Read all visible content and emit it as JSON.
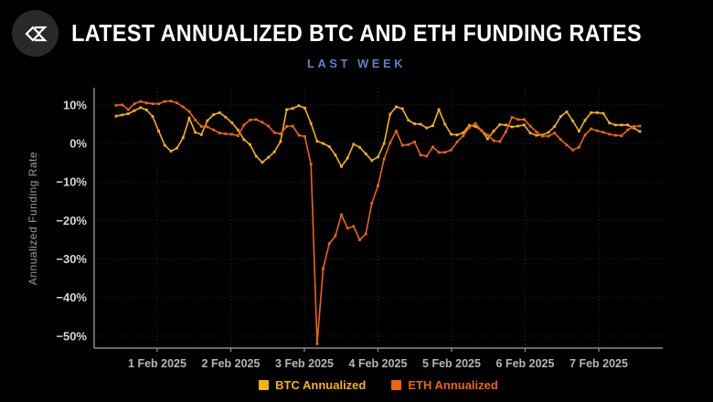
{
  "header": {
    "title": "LATEST ANNUALIZED BTC AND ETH FUNDING RATES",
    "subtitle": "LAST WEEK",
    "logo_icon": "sigma-diamond-logo-icon"
  },
  "colors": {
    "background": "#000000",
    "title_text": "#ffffff",
    "subtitle_text": "#5d81c4",
    "btc": "#f5b40d",
    "eth": "#ed650c",
    "axis_line": "#8a8a8a",
    "gridline": "#262626",
    "y_tick_label": "#d6d6d6",
    "x_tick_label": "#b5b5b5",
    "axis_title": "#9b9b9b",
    "logo_circle": "#292929",
    "logo_glyph": "#ffffff"
  },
  "chart_data": {
    "type": "line",
    "title": "LATEST ANNUALIZED BTC AND ETH FUNDING RATES",
    "subtitle": "LAST WEEK",
    "xlabel": "",
    "ylabel": "Annualized Funding Rate",
    "ylim": [
      -53,
      13.5
    ],
    "grid": "dotted horizontal lines each 10% and vertical lines at each day tick",
    "legend_position": "bottom-center",
    "marker": "square",
    "x_tick_labels": [
      "1 Feb 2025",
      "2 Feb 2025",
      "3 Feb 2025",
      "4 Feb 2025",
      "5 Feb 2025",
      "6 Feb 2025",
      "7 Feb 2025"
    ],
    "y_tick_labels": [
      "10%",
      "0%",
      "−10%",
      "−20%",
      "−30%",
      "−40%",
      "−50%"
    ],
    "y_tick_values": [
      10,
      0,
      -10,
      -20,
      -30,
      -40,
      -50
    ],
    "x_note": "values estimated at ~2-hour spacing, spanning from just before 1 Feb 2025 to midday 7 Feb 2025",
    "series": [
      {
        "name": "BTC Annualized",
        "color": "#f5b40d",
        "values": [
          7.1,
          7.4,
          7.7,
          8.5,
          9.3,
          8.7,
          7.0,
          3.2,
          -0.5,
          -2.0,
          -1.2,
          1.5,
          6.6,
          2.9,
          2.3,
          5.9,
          7.5,
          8.0,
          6.8,
          5.4,
          3.5,
          1.0,
          -0.3,
          -3.3,
          -4.9,
          -3.6,
          -2.2,
          0.5,
          8.8,
          9.1,
          9.8,
          9.2,
          5.2,
          0.6,
          0.0,
          -0.8,
          -3.0,
          -6.0,
          -3.8,
          -0.2,
          -1.0,
          -2.7,
          -4.4,
          -3.5,
          0.0,
          7.6,
          9.5,
          9.0,
          6.0,
          5.1,
          5.0,
          4.0,
          4.6,
          8.8,
          5.0,
          2.4,
          2.2,
          2.8,
          4.7,
          4.4,
          3.4,
          1.2,
          3.2,
          4.9,
          4.8,
          4.3,
          4.5,
          4.8,
          2.7,
          2.1,
          2.2,
          2.9,
          4.4,
          7.0,
          8.2,
          5.8,
          3.2,
          6.0,
          8.0,
          8.0,
          7.8,
          5.3,
          4.8,
          4.8,
          4.8,
          4.0,
          3.1
        ]
      },
      {
        "name": "ETH Annualized",
        "color": "#ed650c",
        "values": [
          9.9,
          10.0,
          8.8,
          10.3,
          10.9,
          10.5,
          10.3,
          10.3,
          10.9,
          11.0,
          10.5,
          9.5,
          8.3,
          6.1,
          4.4,
          4.3,
          3.5,
          2.7,
          2.5,
          2.4,
          2.0,
          4.8,
          6.1,
          6.2,
          5.5,
          4.5,
          2.8,
          2.5,
          4.4,
          4.5,
          2.1,
          1.8,
          -5.4,
          -52.0,
          -32.5,
          -26.0,
          -24.0,
          -18.5,
          -22.0,
          -21.5,
          -25.0,
          -23.5,
          -15.5,
          -11.0,
          -4.0,
          0.2,
          3.2,
          -0.5,
          -0.3,
          0.4,
          -3.0,
          -3.3,
          -0.9,
          -2.3,
          -2.3,
          -1.7,
          0.4,
          2.0,
          4.2,
          5.2,
          3.3,
          2.2,
          0.7,
          0.5,
          3.0,
          6.8,
          6.2,
          6.2,
          4.5,
          3.0,
          1.9,
          1.9,
          2.7,
          1.0,
          -0.4,
          -1.7,
          -1.0,
          2.2,
          3.8,
          3.3,
          2.9,
          2.4,
          2.1,
          2.0,
          3.5,
          4.4,
          4.5
        ]
      }
    ]
  }
}
